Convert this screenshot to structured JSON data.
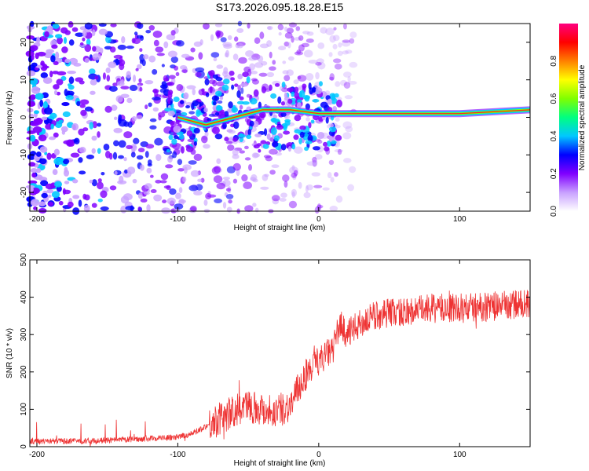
{
  "title": "S173.2026.095.18.28.E15",
  "chart_data": [
    {
      "type": "heatmap",
      "name": "spectrogram",
      "xlabel": "Height of straight line (km)",
      "ylabel": "Frequency (Hz)",
      "xlim": [
        -205,
        150
      ],
      "ylim": [
        -25,
        25
      ],
      "xticks": [
        -200,
        -100,
        0,
        100
      ],
      "yticks": [
        -20,
        -10,
        0,
        10,
        20
      ],
      "colorbar": {
        "label": "Normalized spectral amplitude",
        "range": [
          0,
          1
        ],
        "ticks": [
          0.0,
          0.2,
          0.4,
          0.6,
          0.8
        ],
        "colors": [
          "#ffffff",
          "#c8a0ff",
          "#8000ff",
          "#0000ff",
          "#00c8ff",
          "#00ff80",
          "#80ff00",
          "#ffff00",
          "#ff8000",
          "#ff0000",
          "#ff0080"
        ]
      },
      "trace": [
        {
          "x": -100,
          "y": 0
        },
        {
          "x": -80,
          "y": -2
        },
        {
          "x": -60,
          "y": 0
        },
        {
          "x": -40,
          "y": 2
        },
        {
          "x": -20,
          "y": 2
        },
        {
          "x": 0,
          "y": 1
        },
        {
          "x": 15,
          "y": 1
        },
        {
          "x": 50,
          "y": 1
        },
        {
          "x": 100,
          "y": 1
        },
        {
          "x": 150,
          "y": 2
        }
      ]
    },
    {
      "type": "line",
      "name": "snr",
      "xlabel": "Height of straight line (km)",
      "ylabel": "SNR (10 * v/v)",
      "xlim": [
        -205,
        150
      ],
      "ylim": [
        0,
        500
      ],
      "xticks": [
        -200,
        -100,
        0,
        100
      ],
      "yticks": [
        0,
        100,
        200,
        300,
        400,
        500
      ],
      "color": "#ee3333",
      "series": [
        {
          "name": "SNR",
          "x": [
            -205,
            -180,
            -160,
            -140,
            -120,
            -100,
            -90,
            -80,
            -70,
            -60,
            -50,
            -40,
            -30,
            -20,
            -10,
            0,
            10,
            15,
            20,
            30,
            40,
            50,
            60,
            80,
            100,
            120,
            140,
            150
          ],
          "values": [
            15,
            15,
            15,
            18,
            22,
            25,
            35,
            55,
            75,
            95,
            110,
            100,
            95,
            110,
            190,
            230,
            260,
            330,
            300,
            330,
            350,
            360,
            360,
            370,
            370,
            375,
            380,
            385
          ]
        }
      ]
    }
  ]
}
